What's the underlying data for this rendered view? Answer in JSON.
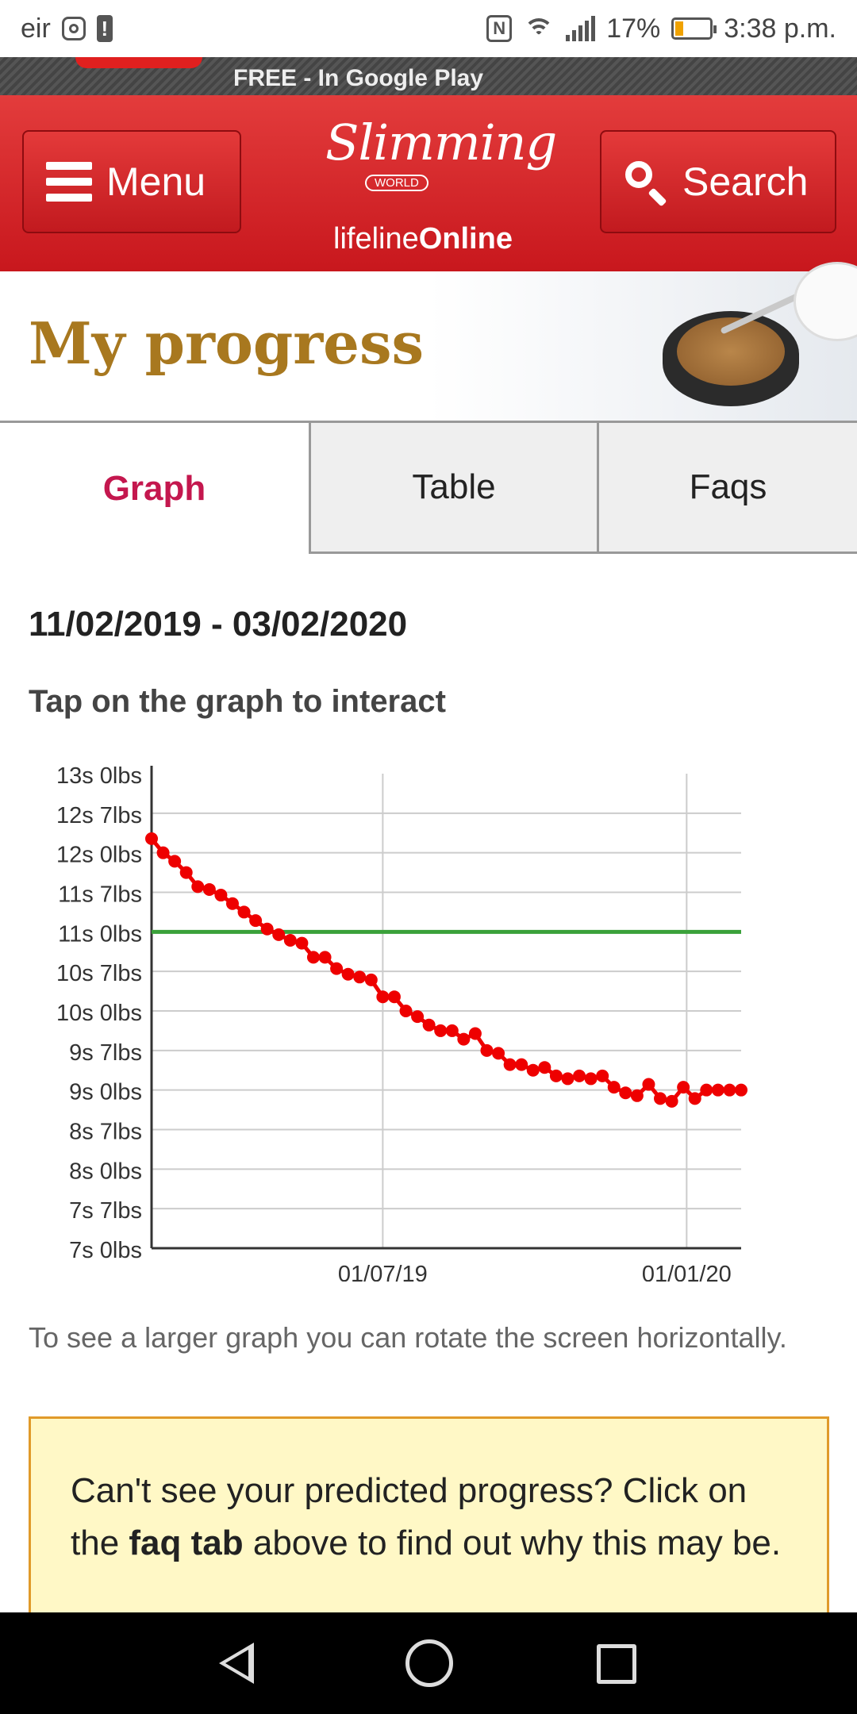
{
  "status_bar": {
    "carrier": "eir",
    "battery_percent": "17%",
    "time": "3:38 p.m."
  },
  "promo": {
    "text": "FREE - In Google Play"
  },
  "header": {
    "menu_label": "Menu",
    "search_label": "Search",
    "logo_script": "Slimming",
    "logo_world": "WORLD",
    "logo_sub_light": "lifeline",
    "logo_sub_bold": "Online"
  },
  "page": {
    "title": "My progress"
  },
  "tabs": [
    {
      "label": "Graph",
      "active": true
    },
    {
      "label": "Table",
      "active": false
    },
    {
      "label": "Faqs",
      "active": false
    }
  ],
  "content": {
    "date_range": "11/02/2019 - 03/02/2020",
    "instruction": "Tap on the graph to interact",
    "hint": "To see a larger graph you can rotate the screen horizontally.",
    "notice_before": "Can't see your predicted progress? Click on the ",
    "notice_bold": "faq tab",
    "notice_after": " above to find out why this may be."
  },
  "chart_data": {
    "type": "line",
    "x_unit": "date",
    "x_range": [
      "2019-02-11",
      "2020-02-03"
    ],
    "y_unit": "lbs",
    "ylim": [
      98,
      182
    ],
    "y_ticks": [
      {
        "value": 182,
        "label": "13s 0lbs"
      },
      {
        "value": 175,
        "label": "12s 7lbs"
      },
      {
        "value": 168,
        "label": "12s 0lbs"
      },
      {
        "value": 161,
        "label": "11s 7lbs"
      },
      {
        "value": 154,
        "label": "11s 0lbs"
      },
      {
        "value": 147,
        "label": "10s 7lbs"
      },
      {
        "value": 140,
        "label": "10s 0lbs"
      },
      {
        "value": 133,
        "label": "9s 7lbs"
      },
      {
        "value": 126,
        "label": "9s 0lbs"
      },
      {
        "value": 119,
        "label": "8s 7lbs"
      },
      {
        "value": 112,
        "label": "8s 0lbs"
      },
      {
        "value": 105,
        "label": "7s 7lbs"
      },
      {
        "value": 98,
        "label": "7s 0lbs"
      }
    ],
    "x_ticks": [
      {
        "date": "2019-07-01",
        "label": "01/07/19"
      },
      {
        "date": "2020-01-01",
        "label": "01/01/20"
      }
    ],
    "target": {
      "value": 154,
      "color": "#3aa13a"
    },
    "series": [
      {
        "color": "#ee0000",
        "points": [
          [
            "2019-02-11",
            170.5
          ],
          [
            "2019-02-18",
            168.0
          ],
          [
            "2019-02-25",
            166.5
          ],
          [
            "2019-03-04",
            164.5
          ],
          [
            "2019-03-11",
            162.0
          ],
          [
            "2019-03-18",
            161.5
          ],
          [
            "2019-03-25",
            160.5
          ],
          [
            "2019-04-01",
            159.0
          ],
          [
            "2019-04-08",
            157.5
          ],
          [
            "2019-04-15",
            156.0
          ],
          [
            "2019-04-22",
            154.5
          ],
          [
            "2019-04-29",
            153.5
          ],
          [
            "2019-05-06",
            152.5
          ],
          [
            "2019-05-13",
            152.0
          ],
          [
            "2019-05-20",
            149.5
          ],
          [
            "2019-05-27",
            149.5
          ],
          [
            "2019-06-03",
            147.5
          ],
          [
            "2019-06-10",
            146.5
          ],
          [
            "2019-06-17",
            146.0
          ],
          [
            "2019-06-24",
            145.5
          ],
          [
            "2019-07-01",
            142.5
          ],
          [
            "2019-07-08",
            142.5
          ],
          [
            "2019-07-15",
            140.0
          ],
          [
            "2019-07-22",
            139.0
          ],
          [
            "2019-07-29",
            137.5
          ],
          [
            "2019-08-05",
            136.5
          ],
          [
            "2019-08-12",
            136.5
          ],
          [
            "2019-08-19",
            135.0
          ],
          [
            "2019-08-26",
            136.0
          ],
          [
            "2019-09-02",
            133.0
          ],
          [
            "2019-09-09",
            132.5
          ],
          [
            "2019-09-16",
            130.5
          ],
          [
            "2019-09-23",
            130.5
          ],
          [
            "2019-09-30",
            129.5
          ],
          [
            "2019-10-07",
            130.0
          ],
          [
            "2019-10-14",
            128.5
          ],
          [
            "2019-10-21",
            128.0
          ],
          [
            "2019-10-28",
            128.5
          ],
          [
            "2019-11-04",
            128.0
          ],
          [
            "2019-11-11",
            128.5
          ],
          [
            "2019-11-18",
            126.5
          ],
          [
            "2019-11-25",
            125.5
          ],
          [
            "2019-12-02",
            125.0
          ],
          [
            "2019-12-09",
            127.0
          ],
          [
            "2019-12-16",
            124.5
          ],
          [
            "2019-12-23",
            124.0
          ],
          [
            "2019-12-30",
            126.5
          ],
          [
            "2020-01-06",
            124.5
          ],
          [
            "2020-01-13",
            126.0
          ],
          [
            "2020-01-20",
            126.0
          ],
          [
            "2020-01-27",
            126.0
          ],
          [
            "2020-02-03",
            126.0
          ]
        ]
      }
    ],
    "grid": true
  }
}
